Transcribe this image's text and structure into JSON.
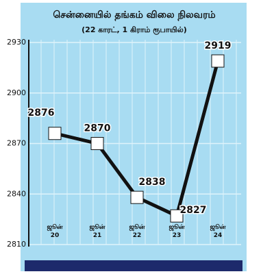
{
  "chart_data": {
    "type": "line",
    "title": "சென்னையில் தங்கம் விலை நிலவரம்",
    "subtitle": "(22 காரட், 1 கிராம் ரூபாயில்)",
    "categories": [
      "ஜூன் 20",
      "ஜூன் 21",
      "ஜூன் 22",
      "ஜூன் 23",
      "ஜூன் 24"
    ],
    "values": [
      2876,
      2870,
      2838,
      2827,
      2919
    ],
    "color": "#111111",
    "ylim": [
      2810,
      2930
    ],
    "yticks": [
      2810,
      2840,
      2870,
      2900,
      2930
    ],
    "grid": true
  }
}
